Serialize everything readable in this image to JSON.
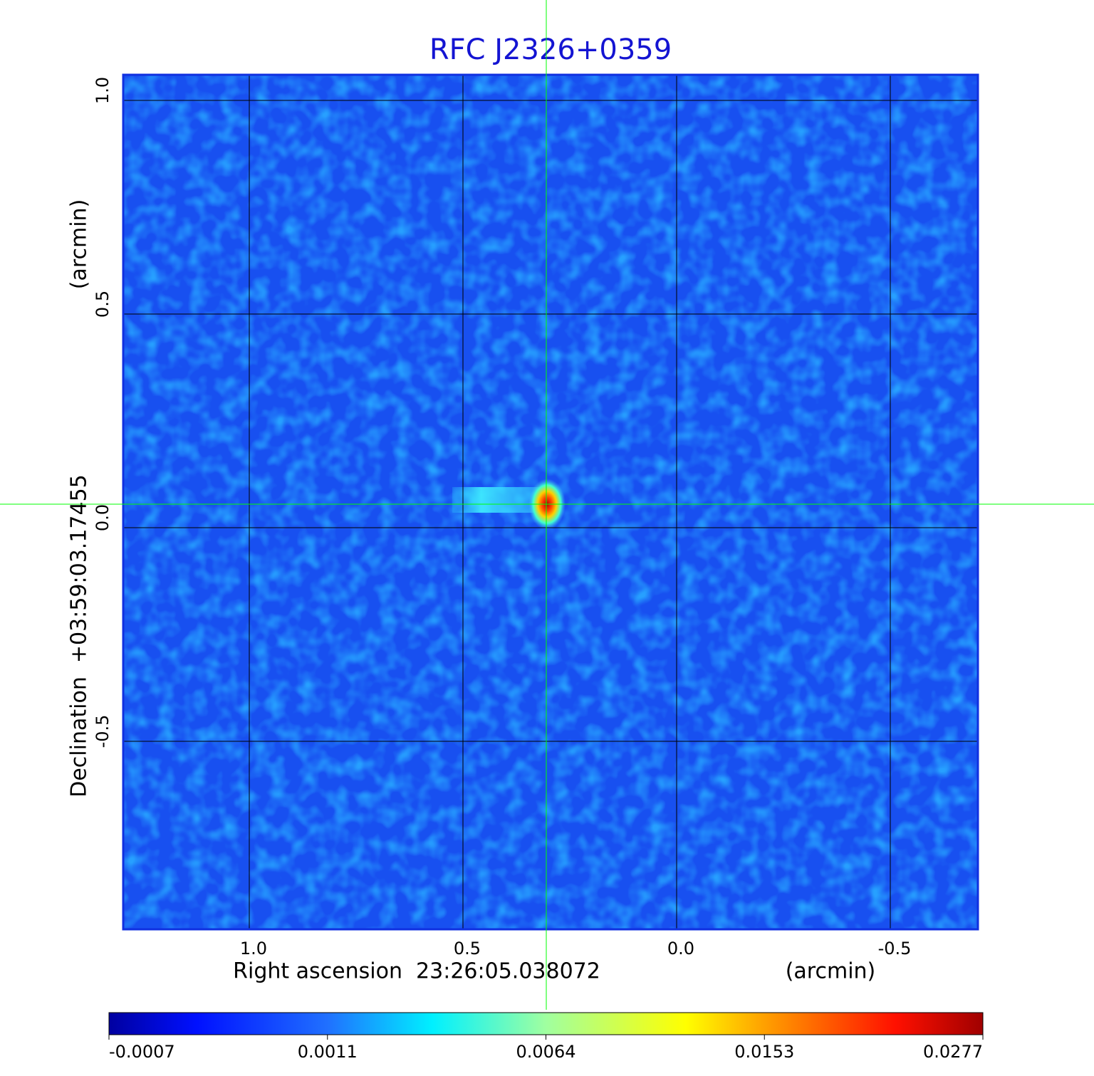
{
  "chart_data": {
    "type": "image",
    "title": "RFC J2326+0359",
    "xlabel": "Right ascension  23:26:05.038072",
    "xunit": "(arcmin)",
    "ylabel": "Declination  +03:59:03.17455",
    "yunit": "(arcmin)",
    "xlim": [
      1.295,
      -0.705
    ],
    "ylim": [
      -0.94,
      1.06
    ],
    "xticks": [
      {
        "value": 1,
        "label": "1.0"
      },
      0.5,
      {
        "value": 0,
        "label": "0.0"
      },
      -0.5
    ],
    "yticks": [
      {
        "value": 1,
        "label": "1.0"
      },
      0.5,
      {
        "value": 0,
        "label": "0.0"
      },
      -0.5
    ],
    "grid": true,
    "marker": {
      "x": 0.305,
      "y": 0.055,
      "color": "#00ff00"
    },
    "colorbar": {
      "ticks": [
        -0.0007,
        0.0011,
        0.0064,
        0.0153,
        0.0277
      ]
    }
  }
}
